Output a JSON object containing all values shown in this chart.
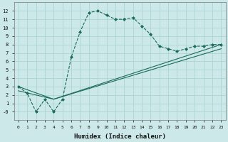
{
  "xlabel": "Humidex (Indice chaleur)",
  "bg_color": "#cce8e8",
  "grid_color": "#aad4d4",
  "line_color": "#1a6b5a",
  "xlim": [
    -0.5,
    23.5
  ],
  "ylim": [
    -1,
    13
  ],
  "xticks": [
    0,
    1,
    2,
    3,
    4,
    5,
    6,
    7,
    8,
    9,
    10,
    11,
    12,
    13,
    14,
    15,
    16,
    17,
    18,
    19,
    20,
    21,
    22,
    23
  ],
  "yticks": [
    0,
    1,
    2,
    3,
    4,
    5,
    6,
    7,
    8,
    9,
    10,
    11,
    12
  ],
  "curve_x": [
    0,
    1,
    2,
    3,
    4,
    5,
    6,
    7,
    8,
    9,
    10,
    11,
    12,
    13,
    14,
    15,
    16,
    17,
    18,
    19,
    20,
    21,
    22,
    23
  ],
  "curve_y": [
    3.0,
    2.2,
    0.0,
    1.5,
    0.0,
    1.5,
    6.5,
    9.5,
    11.8,
    12.0,
    11.5,
    11.0,
    11.0,
    11.2,
    10.2,
    9.2,
    7.8,
    7.5,
    7.2,
    7.5,
    7.8,
    7.8,
    8.0,
    8.0
  ],
  "line2_x": [
    0,
    4,
    23
  ],
  "line2_y": [
    3.0,
    1.5,
    8.0
  ],
  "line3_x": [
    0,
    4,
    23
  ],
  "line3_y": [
    2.5,
    1.5,
    7.5
  ]
}
